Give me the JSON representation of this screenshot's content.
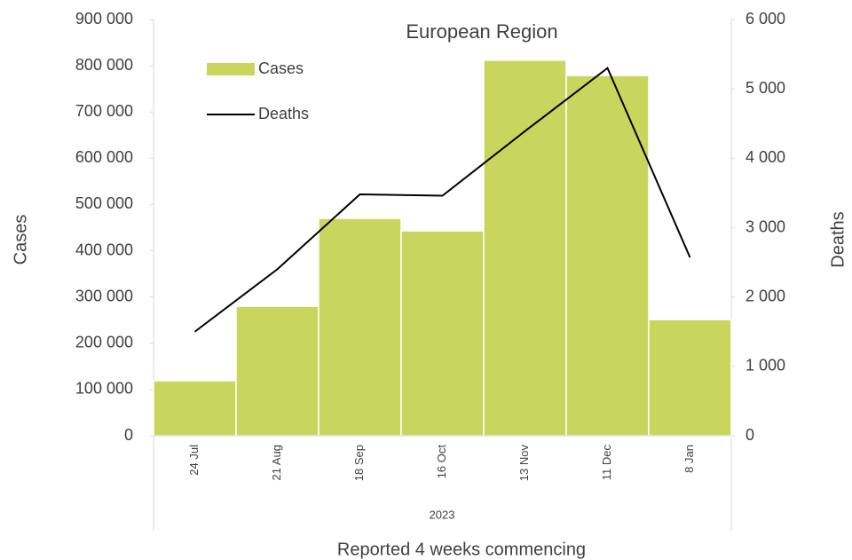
{
  "chart_data": {
    "type": "bar",
    "title": "European Region",
    "categories": [
      "24 Jul",
      "21 Aug",
      "18 Sep",
      "16 Oct",
      "13 Nov",
      "11 Dec",
      "8 Jan"
    ],
    "group_label": "2023",
    "x_label": "Reported 4 weeks commencing",
    "y_label": "Cases",
    "y2_label": "Deaths",
    "series": [
      {
        "name": "Cases",
        "type": "bar",
        "color": "#c9d65e",
        "values": [
          119000,
          280000,
          470000,
          443000,
          812000,
          779000,
          251000
        ]
      },
      {
        "name": "Deaths",
        "type": "line",
        "axis": "y2",
        "color": "#000000",
        "values": [
          1500,
          2400,
          3480,
          3460,
          4390,
          5300,
          2570
        ]
      }
    ],
    "ylim": [
      0,
      900000
    ],
    "yticks": [
      0,
      {
        "value": 100000,
        "label": "100 000"
      },
      {
        "value": 200000,
        "label": "200 000"
      },
      {
        "value": 300000,
        "label": "300 000"
      },
      {
        "value": 400000,
        "label": "400 000"
      },
      {
        "value": 500000,
        "label": "500 000"
      },
      {
        "value": 600000,
        "label": "600 000"
      },
      {
        "value": 700000,
        "label": "700 000"
      },
      {
        "value": 800000,
        "label": "800 000"
      },
      {
        "value": 900000,
        "label": "900 000"
      }
    ],
    "y2lim": [
      0,
      6000
    ],
    "y2ticks": [
      0,
      {
        "value": 1000,
        "label": "1 000"
      },
      {
        "value": 2000,
        "label": "2 000"
      },
      {
        "value": 3000,
        "label": "3 000"
      },
      {
        "value": 4000,
        "label": "4 000"
      },
      {
        "value": 5000,
        "label": "5 000"
      },
      {
        "value": 6000,
        "label": "6 000"
      }
    ],
    "legend": "top-left"
  }
}
